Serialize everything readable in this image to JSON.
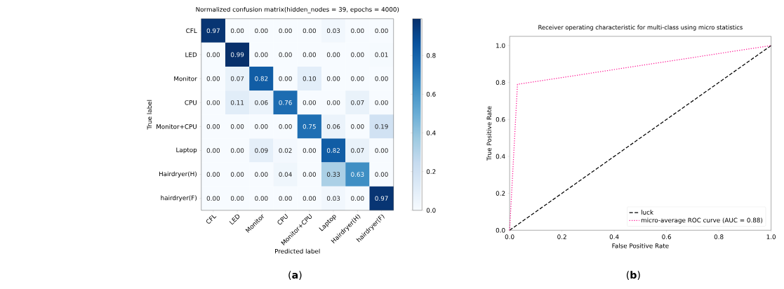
{
  "chart_data": [
    {
      "type": "heatmap",
      "title": "Normalized confusion matrix(hidden_nodes = 39, epochs = 4000)",
      "xlabel": "Predicted label",
      "ylabel": "True label",
      "categories": [
        "CFL",
        "LED",
        "Monitor",
        "CPU",
        "Monitor+CPU",
        "Laptop",
        "Hairdryer(H)",
        "hairdryer(F)"
      ],
      "y_categories": [
        "CFL",
        "LED",
        "Monitor",
        "CPU",
        "Monitor+CPU",
        "Laptop",
        "Hairdryer(H)",
        "hairdryer(F)"
      ],
      "cells": [
        [
          0.97,
          0.0,
          0.0,
          0.0,
          0.0,
          0.03,
          0.0,
          0.0
        ],
        [
          0.0,
          0.99,
          0.0,
          0.0,
          0.0,
          0.0,
          0.0,
          0.01
        ],
        [
          0.0,
          0.07,
          0.82,
          0.0,
          0.1,
          0.0,
          0.0,
          0.0
        ],
        [
          0.0,
          0.11,
          0.06,
          0.76,
          0.0,
          0.0,
          0.07,
          0.0
        ],
        [
          0.0,
          0.0,
          0.0,
          0.0,
          0.75,
          0.06,
          0.0,
          0.19
        ],
        [
          0.0,
          0.0,
          0.09,
          0.02,
          0.0,
          0.82,
          0.07,
          0.0
        ],
        [
          0.0,
          0.0,
          0.0,
          0.04,
          0.0,
          0.33,
          0.63,
          0.0
        ],
        [
          0.0,
          0.0,
          0.0,
          0.0,
          0.0,
          0.03,
          0.0,
          0.97
        ]
      ],
      "cell_labels": [
        [
          "0.97",
          "0.00",
          "0.00",
          "0.00",
          "0.00",
          "0.03",
          "0.00",
          "0.00"
        ],
        [
          "0.00",
          "0.99",
          "0.00",
          "0.00",
          "0.00",
          "0.00",
          "0.00",
          "0.01"
        ],
        [
          "0.00",
          "0.07",
          "0.82",
          "0.00",
          "0.10",
          "0.00",
          "0.00",
          "0.00"
        ],
        [
          "0.00",
          "0.11",
          "0.06",
          "0.76",
          "0.00",
          "0.00",
          "0.07",
          "0.00"
        ],
        [
          "0.00",
          "0.00",
          "0.00",
          "0.00",
          "0.75",
          "0.06",
          "0.00",
          "0.19"
        ],
        [
          "0.00",
          "0.00",
          "0.09",
          "0.02",
          "0.00",
          "0.82",
          "0.07",
          "0.00"
        ],
        [
          "0.00",
          "0.00",
          "0.00",
          "0.04",
          "0.00",
          "0.33",
          "0.63",
          "0.00"
        ],
        [
          "0.00",
          "0.00",
          "0.00",
          "0.00",
          "0.00",
          "0.03",
          "0.00",
          "0.97"
        ]
      ],
      "clim": [
        0,
        0.99
      ],
      "cticks": [
        {
          "value": 0,
          "label": "0.0"
        },
        {
          "value": 0.2,
          "label": "0.2"
        },
        {
          "value": 0.4,
          "label": "0.4"
        },
        {
          "value": 0.6,
          "label": "0.6"
        },
        {
          "value": 0.8,
          "label": "0.8"
        }
      ],
      "annotations": [
        "(**a**)"
      ]
    },
    {
      "type": "line",
      "title": "Receiver operating characteristic for multi-class using micro statistics",
      "xlabel": "False Positive Rate",
      "ylabel": "True Positive Rate",
      "series": [
        {
          "name": "luck",
          "color": "#000000",
          "line_style": "dashed",
          "x": [
            0,
            1
          ],
          "values": [
            0,
            1
          ]
        },
        {
          "name": "micro-average ROC curve (AUC = 0.88)",
          "color": "#ff1493",
          "line_style": "dotted",
          "x": [
            0,
            0.03,
            1
          ],
          "values": [
            0,
            0.79,
            1
          ]
        }
      ],
      "xlim": [
        0,
        1
      ],
      "ylim": [
        0,
        1.05
      ],
      "xticks": [
        {
          "value": 0,
          "label": "0.0"
        },
        {
          "value": 0.2,
          "label": "0.2"
        },
        {
          "value": 0.4,
          "label": "0.4"
        },
        {
          "value": 0.6,
          "label": "0.6"
        },
        {
          "value": 0.8,
          "label": "0.8"
        },
        {
          "value": 1,
          "label": "1.0"
        }
      ],
      "yticks": [
        {
          "value": 0,
          "label": "0.0"
        },
        {
          "value": 0.2,
          "label": "0.2"
        },
        {
          "value": 0.4,
          "label": "0.4"
        },
        {
          "value": 0.6,
          "label": "0.6"
        },
        {
          "value": 0.8,
          "label": "0.8"
        },
        {
          "value": 1,
          "label": "1.0"
        }
      ],
      "legend": "bottom right",
      "annotations": [
        "(**b**)"
      ]
    }
  ]
}
